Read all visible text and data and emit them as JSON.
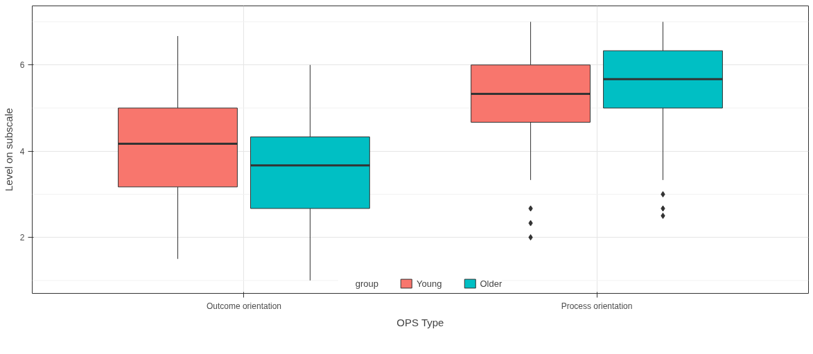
{
  "chart_data": {
    "type": "box",
    "categories": [
      "Outcome orientation",
      "Process orientation"
    ],
    "xlabel": "OPS Type",
    "ylabel": "Level on subscale",
    "legend_title": "group",
    "legend": "bottom",
    "grid": true,
    "ylim": [
      0.7,
      7.37
    ],
    "yticks": [
      2,
      4,
      6
    ],
    "series": [
      {
        "name": "Young",
        "color": "#f8766d",
        "boxes": [
          {
            "low": 1.5,
            "q1": 3.17,
            "median": 4.17,
            "q3": 5,
            "high": 6.67
          },
          {
            "low": 3.33,
            "q1": 4.67,
            "median": 5.33,
            "q3": 6,
            "high": 7,
            "outliers": [
              2.67,
              2.33,
              2
            ]
          }
        ]
      },
      {
        "name": "Older",
        "color": "#00bfc4",
        "boxes": [
          {
            "low": 1,
            "q1": 2.67,
            "median": 3.67,
            "q3": 4.33,
            "high": 6
          },
          {
            "low": 3.33,
            "q1": 5,
            "median": 5.67,
            "q3": 6.33,
            "high": 7,
            "outliers": [
              3,
              2.67,
              2.5
            ]
          }
        ]
      }
    ]
  }
}
